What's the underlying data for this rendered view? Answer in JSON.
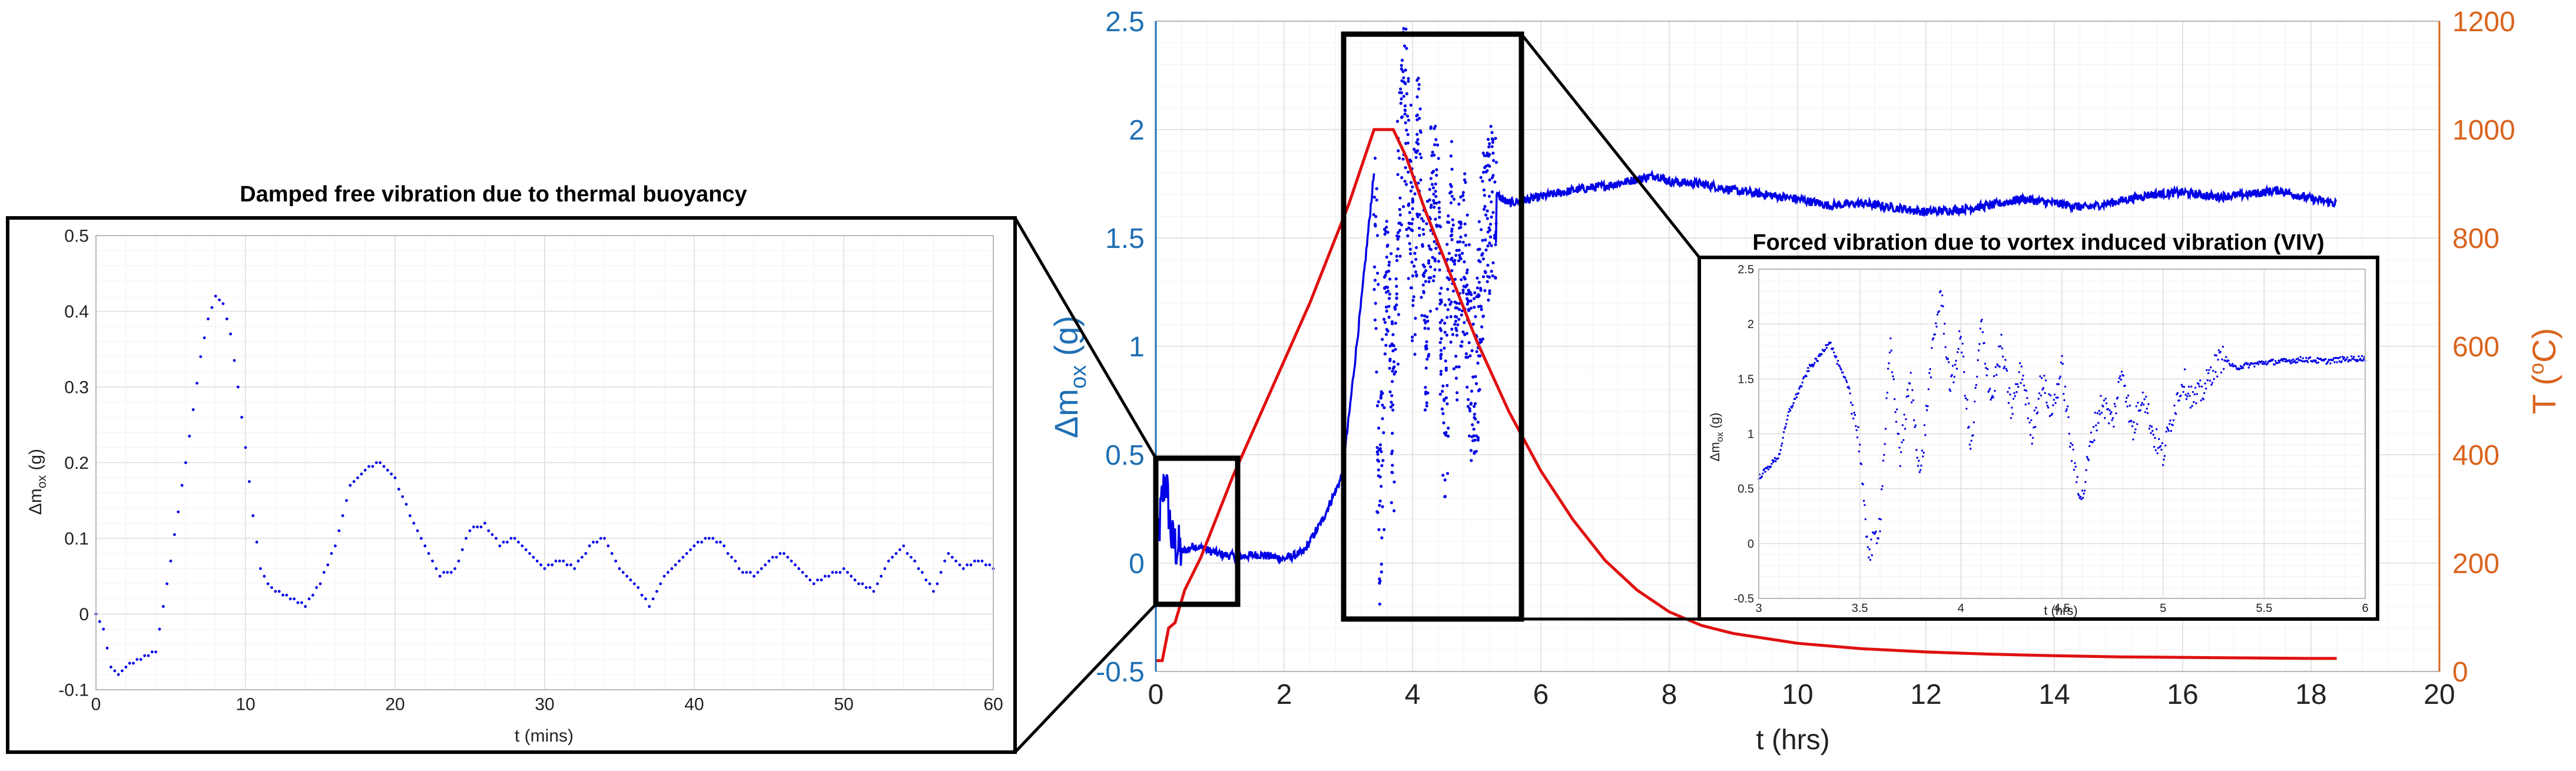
{
  "colors": {
    "mass": "#0000e6",
    "temperature": "#e01010",
    "left_axis": "#1f6fb3",
    "right_axis": "#d9641e",
    "frame": "#000000",
    "grid": "#e6e6e6"
  },
  "chart_data": [
    {
      "id": "main",
      "type": "line",
      "xlabel": "t (hrs)",
      "ylabel_left": {
        "main": "Δm",
        "sub": "ox",
        "unit": " (g)"
      },
      "ylabel_right": {
        "main": "T (",
        "sup": "o",
        "unit": "C)"
      },
      "xlim": [
        0,
        20
      ],
      "ylim_left": [
        -0.5,
        2.5
      ],
      "ylim_right": [
        0,
        1200
      ],
      "xticks": [
        0,
        2,
        4,
        6,
        8,
        10,
        12,
        14,
        16,
        18,
        20
      ],
      "xtick_labels": [
        "0",
        "2",
        "4",
        "6",
        "8",
        "10",
        "12",
        "14",
        "16",
        "18",
        "20"
      ],
      "yticks_left": [
        -0.5,
        0,
        0.5,
        1,
        1.5,
        2,
        2.5
      ],
      "ytick_labels_left": [
        "-0.5",
        "0",
        "0.5",
        "1",
        "1.5",
        "2",
        "2.5"
      ],
      "yticks_right": [
        0,
        200,
        400,
        600,
        800,
        1000,
        1200
      ],
      "ytick_labels_right": [
        "0",
        "200",
        "400",
        "600",
        "800",
        "1000",
        "1200"
      ],
      "grid": true,
      "series": [
        {
          "axis": "left",
          "style": "mixed",
          "x": [
            0,
            0.1,
            0.15,
            0.25,
            0.4,
            0.6,
            0.8,
            1.0,
            1.3,
            1.6,
            2.0,
            2.3,
            2.6,
            2.9,
            3.0,
            3.2,
            3.4,
            3.5,
            3.6,
            3.7,
            3.8,
            3.9,
            4.0,
            4.1,
            4.2,
            4.3,
            4.4,
            4.5,
            4.6,
            4.7,
            4.8,
            4.9,
            5.0,
            5.1,
            5.2,
            5.3,
            5.5,
            6.0,
            6.5,
            7.0,
            7.5,
            7.8,
            8.0,
            8.5,
            9.0,
            9.5,
            10.0,
            10.5,
            11.0,
            11.5,
            12.0,
            12.5,
            13.0,
            13.5,
            14.0,
            14.5,
            15.0,
            15.5,
            16.0,
            16.5,
            17.0,
            17.5,
            18.0,
            18.4
          ],
          "y": [
            0.0,
            0.3,
            0.4,
            0.1,
            0.05,
            0.08,
            0.06,
            0.04,
            0.03,
            0.04,
            0.02,
            0.05,
            0.2,
            0.4,
            0.65,
            1.2,
            1.8,
            0.0,
            1.6,
            0.5,
            1.8,
            2.2,
            1.3,
            1.9,
            1.0,
            1.7,
            1.5,
            0.6,
            1.6,
            1.1,
            1.5,
            0.9,
            0.8,
            1.5,
            1.6,
            1.7,
            1.66,
            1.69,
            1.72,
            1.74,
            1.77,
            1.79,
            1.76,
            1.75,
            1.72,
            1.7,
            1.68,
            1.65,
            1.66,
            1.64,
            1.62,
            1.63,
            1.65,
            1.68,
            1.66,
            1.64,
            1.67,
            1.7,
            1.71,
            1.69,
            1.7,
            1.72,
            1.68,
            1.66
          ]
        },
        {
          "axis": "right",
          "style": "line",
          "x": [
            0,
            0.1,
            0.2,
            0.3,
            0.45,
            0.7,
            1.2,
            1.8,
            2.4,
            3.0,
            3.4,
            3.5,
            3.7,
            3.9,
            4.2,
            4.6,
            5.0,
            5.5,
            6.0,
            6.5,
            7.0,
            7.5,
            8.0,
            8.5,
            9.0,
            10.0,
            11.0,
            12.0,
            13.0,
            14.0,
            15.0,
            16.0,
            17.0,
            18.0,
            18.4
          ],
          "y": [
            20,
            20,
            80,
            90,
            150,
            210,
            360,
            520,
            680,
            860,
            1000,
            1000,
            1000,
            950,
            850,
            730,
            610,
            480,
            370,
            280,
            205,
            150,
            110,
            85,
            70,
            52,
            42,
            36,
            32,
            29,
            27,
            26,
            25,
            24,
            24
          ]
        }
      ]
    },
    {
      "id": "inset-left",
      "type": "scatter",
      "title": "Damped free vibration due to thermal buoyancy",
      "xlabel": "t (mins)",
      "ylabel": {
        "main": "Δm",
        "sub": "ox",
        "unit": " (g)"
      },
      "xlim": [
        0,
        60
      ],
      "ylim": [
        -0.1,
        0.5
      ],
      "xticks": [
        0,
        10,
        20,
        30,
        40,
        50,
        60
      ],
      "xtick_labels": [
        "0",
        "10",
        "20",
        "30",
        "40",
        "50",
        "60"
      ],
      "yticks": [
        -0.1,
        0,
        0.1,
        0.2,
        0.3,
        0.4,
        0.5
      ],
      "ytick_labels": [
        "-0.1",
        "0",
        "0.1",
        "0.2",
        "0.3",
        "0.4",
        "0.5"
      ],
      "grid": true,
      "series": [
        {
          "x": [
            0,
            0.5,
            1,
            1.5,
            2,
            3,
            4,
            5,
            6,
            7,
            7.5,
            8,
            8.5,
            9,
            9.5,
            10,
            10.5,
            11,
            11.5,
            12,
            13,
            14,
            15,
            16,
            17,
            18,
            19,
            20,
            21,
            22,
            23,
            24,
            25,
            26,
            27,
            28,
            29,
            30,
            31,
            32,
            33,
            34,
            35,
            36,
            37,
            38,
            39,
            40,
            41,
            42,
            43,
            44,
            45,
            46,
            47,
            48,
            49,
            50,
            51,
            52,
            53,
            54,
            55,
            56,
            57,
            58,
            59,
            60
          ],
          "y": [
            0.0,
            -0.02,
            -0.07,
            -0.08,
            -0.07,
            -0.06,
            -0.05,
            0.07,
            0.2,
            0.34,
            0.39,
            0.42,
            0.41,
            0.37,
            0.3,
            0.22,
            0.13,
            0.06,
            0.04,
            0.03,
            0.02,
            0.01,
            0.04,
            0.09,
            0.17,
            0.19,
            0.2,
            0.18,
            0.13,
            0.09,
            0.05,
            0.06,
            0.11,
            0.12,
            0.09,
            0.1,
            0.08,
            0.06,
            0.07,
            0.06,
            0.09,
            0.1,
            0.06,
            0.04,
            0.01,
            0.05,
            0.07,
            0.09,
            0.1,
            0.09,
            0.06,
            0.05,
            0.07,
            0.08,
            0.06,
            0.04,
            0.05,
            0.06,
            0.04,
            0.03,
            0.07,
            0.09,
            0.06,
            0.03,
            0.08,
            0.06,
            0.07,
            0.06
          ]
        }
      ]
    },
    {
      "id": "inset-right",
      "type": "scatter",
      "title": "Forced vibration due to vortex induced vibration (VIV)",
      "xlabel": "t (hrs)",
      "ylabel": {
        "main": "Δm",
        "sub": "ox",
        "unit": " (g)"
      },
      "xlim": [
        3,
        6
      ],
      "ylim": [
        -0.5,
        2.5
      ],
      "xticks": [
        3,
        3.5,
        4,
        4.5,
        5,
        5.5,
        6
      ],
      "xtick_labels": [
        "3",
        "3.5",
        "4",
        "4.5",
        "5",
        "5.5",
        "6"
      ],
      "yticks": [
        -0.5,
        0,
        0.5,
        1,
        1.5,
        2,
        2.5
      ],
      "ytick_labels": [
        "-0.5",
        "0",
        "0.5",
        "1",
        "1.5",
        "2",
        "2.5"
      ],
      "grid": true,
      "series": [
        {
          "x": [
            3.0,
            3.05,
            3.1,
            3.15,
            3.2,
            3.25,
            3.3,
            3.35,
            3.4,
            3.45,
            3.5,
            3.52,
            3.55,
            3.6,
            3.65,
            3.7,
            3.75,
            3.8,
            3.85,
            3.9,
            3.95,
            4.0,
            4.05,
            4.1,
            4.15,
            4.2,
            4.25,
            4.3,
            4.35,
            4.4,
            4.45,
            4.5,
            4.55,
            4.6,
            4.65,
            4.7,
            4.75,
            4.8,
            4.85,
            4.9,
            4.95,
            5.0,
            5.05,
            5.1,
            5.15,
            5.2,
            5.25,
            5.3,
            5.35,
            5.4,
            5.5,
            5.6,
            5.7,
            5.8,
            5.9,
            6.0
          ],
          "y": [
            0.6,
            0.7,
            0.8,
            1.2,
            1.4,
            1.6,
            1.7,
            1.85,
            1.6,
            1.4,
            0.9,
            0.3,
            -0.1,
            0.2,
            1.8,
            0.8,
            1.5,
            0.6,
            1.6,
            2.3,
            1.4,
            1.9,
            0.8,
            2.0,
            1.3,
            1.8,
            1.2,
            1.6,
            1.0,
            1.5,
            1.2,
            1.6,
            0.8,
            0.4,
            1.0,
            1.3,
            1.1,
            1.6,
            1.0,
            1.4,
            1.0,
            0.8,
            1.2,
            1.5,
            1.3,
            1.4,
            1.6,
            1.7,
            1.6,
            1.62,
            1.65,
            1.66,
            1.68,
            1.66,
            1.68,
            1.69
          ]
        }
      ]
    }
  ]
}
